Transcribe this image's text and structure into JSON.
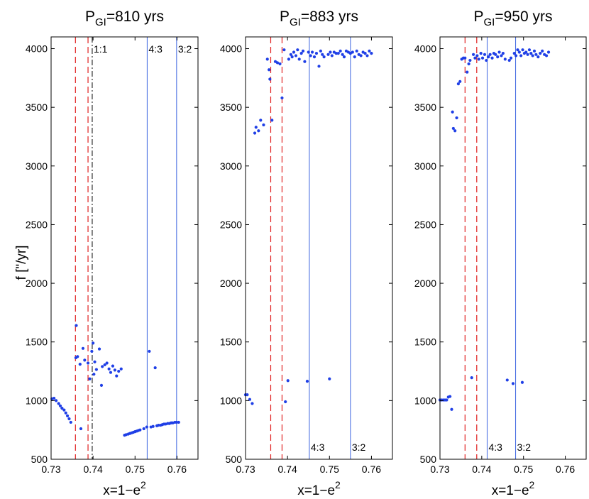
{
  "chart_data": [
    {
      "type": "scatter",
      "title_main": "P",
      "title_sub": "GI",
      "title_rest": "=810 yrs",
      "xlabel": "x=1−e",
      "xlabel_sup": "2",
      "ylabel": "f [\"/yr]",
      "xlim": [
        0.73,
        0.765
      ],
      "ylim": [
        500,
        4100
      ],
      "xticks": [
        0.73,
        0.74,
        0.75,
        0.76
      ],
      "xtick_labels": [
        "0.73",
        "0.74",
        "0.75",
        "0.76"
      ],
      "yticks": [
        500,
        1000,
        1500,
        2000,
        2500,
        3000,
        3500,
        4000
      ],
      "ytick_labels": [
        "500",
        "1000",
        "1500",
        "2000",
        "2500",
        "3000",
        "3500",
        "4000"
      ],
      "red_dashed_x": [
        0.7358,
        0.7388
      ],
      "black_dashdot_x": [
        0.7398
      ],
      "blue_lines": [
        {
          "x": 0.7529,
          "label": "4:3",
          "label_pos": "top"
        },
        {
          "x": 0.7599,
          "label": "3:2",
          "label_pos": "top"
        }
      ],
      "black_line_labels": [
        {
          "x": 0.7398,
          "label": "1:1",
          "label_pos": "top"
        }
      ],
      "series": [
        {
          "name": "frequency",
          "points": [
            [
              0.7302,
              1015
            ],
            [
              0.7307,
              1020
            ],
            [
              0.7312,
              1000
            ],
            [
              0.7318,
              975
            ],
            [
              0.7322,
              955
            ],
            [
              0.7326,
              935
            ],
            [
              0.7331,
              920
            ],
            [
              0.7335,
              895
            ],
            [
              0.7339,
              870
            ],
            [
              0.7343,
              845
            ],
            [
              0.7347,
              815
            ],
            [
              0.736,
              1640
            ],
            [
              0.7359,
              1365
            ],
            [
              0.7363,
              1375
            ],
            [
              0.7369,
              1310
            ],
            [
              0.7371,
              760
            ],
            [
              0.7376,
              1445
            ],
            [
              0.738,
              1345
            ],
            [
              0.7388,
              1320
            ],
            [
              0.7392,
              1185
            ],
            [
              0.7397,
              1420
            ],
            [
              0.74,
              1490
            ],
            [
              0.7402,
              1225
            ],
            [
              0.7404,
              1330
            ],
            [
              0.7408,
              1265
            ],
            [
              0.7415,
              1440
            ],
            [
              0.742,
              1130
            ],
            [
              0.7422,
              1290
            ],
            [
              0.7428,
              1305
            ],
            [
              0.7433,
              1320
            ],
            [
              0.7438,
              1270
            ],
            [
              0.7442,
              1240
            ],
            [
              0.7447,
              1295
            ],
            [
              0.7452,
              1260
            ],
            [
              0.7456,
              1210
            ],
            [
              0.7461,
              1250
            ],
            [
              0.7467,
              1270
            ],
            [
              0.7475,
              705
            ],
            [
              0.7479,
              710
            ],
            [
              0.7484,
              715
            ],
            [
              0.7488,
              720
            ],
            [
              0.7492,
              725
            ],
            [
              0.7496,
              730
            ],
            [
              0.75,
              735
            ],
            [
              0.7504,
              740
            ],
            [
              0.7508,
              745
            ],
            [
              0.7512,
              750
            ],
            [
              0.7521,
              760
            ],
            [
              0.7528,
              775
            ],
            [
              0.7534,
              1420
            ],
            [
              0.7538,
              775
            ],
            [
              0.7543,
              780
            ],
            [
              0.7548,
              1280
            ],
            [
              0.7552,
              785
            ],
            [
              0.7556,
              790
            ],
            [
              0.7561,
              790
            ],
            [
              0.7565,
              795
            ],
            [
              0.7569,
              800
            ],
            [
              0.7573,
              800
            ],
            [
              0.7578,
              805
            ],
            [
              0.7582,
              805
            ],
            [
              0.7586,
              810
            ],
            [
              0.759,
              810
            ],
            [
              0.7595,
              815
            ],
            [
              0.7599,
              815
            ],
            [
              0.7604,
              815
            ]
          ]
        }
      ]
    },
    {
      "type": "scatter",
      "title_main": "P",
      "title_sub": "GI",
      "title_rest": "=883 yrs",
      "xlabel": "x=1−e",
      "xlabel_sup": "2",
      "ylabel": "",
      "xlim": [
        0.73,
        0.765
      ],
      "ylim": [
        500,
        4100
      ],
      "xticks": [
        0.73,
        0.74,
        0.75,
        0.76
      ],
      "xtick_labels": [
        "0.73",
        "0.74",
        "0.75",
        "0.76"
      ],
      "yticks": [
        500,
        1000,
        1500,
        2000,
        2500,
        3000,
        3500,
        4000
      ],
      "ytick_labels": [
        "500",
        "1000",
        "1500",
        "2000",
        "2500",
        "3000",
        "3500",
        "4000"
      ],
      "red_dashed_x": [
        0.736,
        0.7387
      ],
      "black_dashdot_x": [],
      "blue_lines": [
        {
          "x": 0.7452,
          "label": "4:3",
          "label_pos": "bottom"
        },
        {
          "x": 0.755,
          "label": "3:2",
          "label_pos": "bottom"
        }
      ],
      "black_line_labels": [],
      "series": [
        {
          "name": "frequency",
          "points": [
            [
              0.73,
              1050
            ],
            [
              0.7304,
              1050
            ],
            [
              0.731,
              1010
            ],
            [
              0.7316,
              975
            ],
            [
              0.7322,
              3280
            ],
            [
              0.7325,
              3330
            ],
            [
              0.7331,
              3300
            ],
            [
              0.7336,
              3390
            ],
            [
              0.7343,
              3350
            ],
            [
              0.7352,
              3910
            ],
            [
              0.7356,
              3820
            ],
            [
              0.7358,
              3740
            ],
            [
              0.7363,
              3390
            ],
            [
              0.7371,
              3890
            ],
            [
              0.7376,
              3880
            ],
            [
              0.7382,
              3870
            ],
            [
              0.7387,
              3580
            ],
            [
              0.7392,
              3990
            ],
            [
              0.7395,
              990
            ],
            [
              0.7401,
              1170
            ],
            [
              0.7403,
              3910
            ],
            [
              0.7408,
              3950
            ],
            [
              0.7411,
              3930
            ],
            [
              0.7415,
              3970
            ],
            [
              0.742,
              3940
            ],
            [
              0.7424,
              3990
            ],
            [
              0.7428,
              3910
            ],
            [
              0.7433,
              3960
            ],
            [
              0.7437,
              3980
            ],
            [
              0.7441,
              3890
            ],
            [
              0.7447,
              1165
            ],
            [
              0.745,
              3970
            ],
            [
              0.7455,
              3940
            ],
            [
              0.7459,
              3970
            ],
            [
              0.7464,
              3930
            ],
            [
              0.7469,
              3960
            ],
            [
              0.7475,
              3850
            ],
            [
              0.7479,
              3980
            ],
            [
              0.7483,
              3950
            ],
            [
              0.7487,
              3930
            ],
            [
              0.75,
              1185
            ],
            [
              0.7497,
              3950
            ],
            [
              0.7502,
              3970
            ],
            [
              0.7506,
              3940
            ],
            [
              0.7511,
              3970
            ],
            [
              0.7516,
              3960
            ],
            [
              0.7521,
              3960
            ],
            [
              0.7526,
              3980
            ],
            [
              0.7531,
              3950
            ],
            [
              0.7535,
              3930
            ],
            [
              0.754,
              3980
            ],
            [
              0.7545,
              3970
            ],
            [
              0.755,
              3960
            ],
            [
              0.7555,
              3970
            ],
            [
              0.756,
              3930
            ],
            [
              0.7565,
              3980
            ],
            [
              0.757,
              3950
            ],
            [
              0.7575,
              3940
            ],
            [
              0.758,
              3970
            ],
            [
              0.7585,
              3960
            ],
            [
              0.759,
              3940
            ],
            [
              0.7595,
              3980
            ],
            [
              0.76,
              3960
            ]
          ]
        }
      ]
    },
    {
      "type": "scatter",
      "title_main": "P",
      "title_sub": "GI",
      "title_rest": "=950 yrs",
      "xlabel": "x=1−e",
      "xlabel_sup": "2",
      "ylabel": "",
      "xlim": [
        0.73,
        0.765
      ],
      "ylim": [
        500,
        4100
      ],
      "xticks": [
        0.73,
        0.74,
        0.75,
        0.76
      ],
      "xtick_labels": [
        "0.73",
        "0.74",
        "0.75",
        "0.76"
      ],
      "yticks": [
        500,
        1000,
        1500,
        2000,
        2500,
        3000,
        3500,
        4000
      ],
      "ytick_labels": [
        "500",
        "1000",
        "1500",
        "2000",
        "2500",
        "3000",
        "3500",
        "4000"
      ],
      "red_dashed_x": [
        0.736,
        0.7388
      ],
      "black_dashdot_x": [],
      "blue_lines": [
        {
          "x": 0.7413,
          "label": "4:3",
          "label_pos": "bottom"
        },
        {
          "x": 0.7481,
          "label": "3:2",
          "label_pos": "bottom"
        }
      ],
      "black_line_labels": [],
      "series": [
        {
          "name": "frequency",
          "points": [
            [
              0.73,
              1005
            ],
            [
              0.7304,
              1005
            ],
            [
              0.7308,
              1005
            ],
            [
              0.7312,
              1005
            ],
            [
              0.7316,
              1005
            ],
            [
              0.732,
              1030
            ],
            [
              0.7324,
              1035
            ],
            [
              0.7328,
              925
            ],
            [
              0.733,
              3460
            ],
            [
              0.7332,
              3320
            ],
            [
              0.7336,
              3300
            ],
            [
              0.734,
              3410
            ],
            [
              0.7344,
              3700
            ],
            [
              0.7348,
              3720
            ],
            [
              0.7352,
              3910
            ],
            [
              0.7356,
              3920
            ],
            [
              0.736,
              3920
            ],
            [
              0.7365,
              3800
            ],
            [
              0.7369,
              3870
            ],
            [
              0.7372,
              3900
            ],
            [
              0.7376,
              1195
            ],
            [
              0.738,
              3950
            ],
            [
              0.7384,
              3920
            ],
            [
              0.7389,
              3940
            ],
            [
              0.7393,
              3910
            ],
            [
              0.7398,
              3960
            ],
            [
              0.7402,
              3920
            ],
            [
              0.7407,
              3950
            ],
            [
              0.7411,
              3900
            ],
            [
              0.7416,
              3930
            ],
            [
              0.742,
              3950
            ],
            [
              0.7425,
              3920
            ],
            [
              0.7429,
              3960
            ],
            [
              0.7433,
              3950
            ],
            [
              0.7438,
              3930
            ],
            [
              0.7442,
              3970
            ],
            [
              0.7447,
              3940
            ],
            [
              0.7451,
              3960
            ],
            [
              0.7456,
              3910
            ],
            [
              0.7461,
              1175
            ],
            [
              0.7466,
              3900
            ],
            [
              0.747,
              3920
            ],
            [
              0.7475,
              1145
            ],
            [
              0.7478,
              3960
            ],
            [
              0.7482,
              3940
            ],
            [
              0.7486,
              3990
            ],
            [
              0.749,
              3970
            ],
            [
              0.7494,
              3940
            ],
            [
              0.7498,
              3990
            ],
            [
              0.7502,
              3960
            ],
            [
              0.7506,
              3970
            ],
            [
              0.751,
              3950
            ],
            [
              0.7514,
              3990
            ],
            [
              0.7518,
              3960
            ],
            [
              0.7522,
              3940
            ],
            [
              0.7526,
              3980
            ],
            [
              0.753,
              3950
            ],
            [
              0.7535,
              3930
            ],
            [
              0.754,
              3960
            ],
            [
              0.7545,
              3980
            ],
            [
              0.755,
              3950
            ],
            [
              0.7555,
              3940
            ],
            [
              0.756,
              3970
            ],
            [
              0.7497,
              1155
            ]
          ]
        }
      ]
    }
  ],
  "colors": {
    "points": "#1f3fe6",
    "blue_line": "#4d72e3",
    "red_dashed": "#e02020",
    "black": "#000000"
  }
}
